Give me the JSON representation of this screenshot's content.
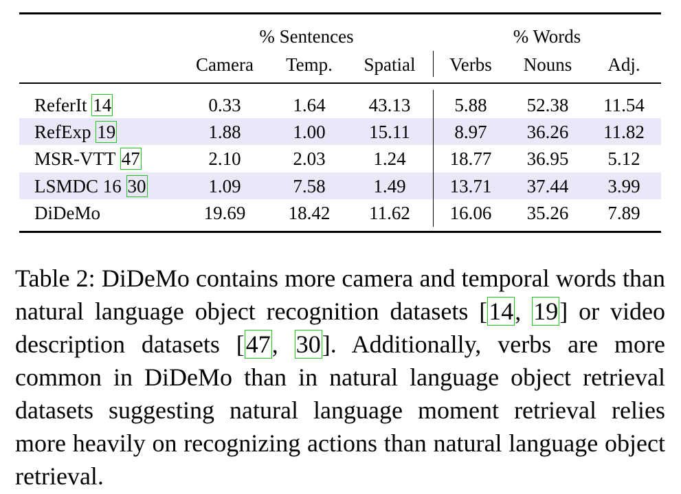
{
  "table": {
    "groups": {
      "sentences": "% Sentences",
      "words": "% Words"
    },
    "columns": [
      "Camera",
      "Temp.",
      "Spatial",
      "Verbs",
      "Nouns",
      "Adj."
    ],
    "rows": [
      {
        "name": "ReferIt",
        "cite": "14",
        "values": [
          "0.33",
          "1.64",
          "43.13",
          "5.88",
          "52.38",
          "11.54"
        ]
      },
      {
        "name": "RefExp",
        "cite": "19",
        "values": [
          "1.88",
          "1.00",
          "15.11",
          "8.97",
          "36.26",
          "11.82"
        ]
      },
      {
        "name": "MSR-VTT",
        "cite": "47",
        "values": [
          "2.10",
          "2.03",
          "1.24",
          "18.77",
          "36.95",
          "5.12"
        ]
      },
      {
        "name": "LSMDC 16",
        "cite": "30",
        "values": [
          "1.09",
          "7.58",
          "1.49",
          "13.71",
          "37.44",
          "3.99"
        ]
      },
      {
        "name": "DiDeMo",
        "cite": "",
        "values": [
          "19.69",
          "18.42",
          "11.62",
          "16.06",
          "35.26",
          "7.89"
        ]
      }
    ]
  },
  "caption": {
    "label": "Table 2:",
    "t1": "DiDeMo contains more camera and temporal words than natural language object recognition datasets [",
    "c1": "14",
    "t2": ", ",
    "c2": "19",
    "t3": "] or video description datasets [",
    "c3": "47",
    "t4": ", ",
    "c4": "30",
    "t5": "]. Additionally, verbs are more common in DiDeMo than in natural language object retrieval datasets suggesting natural language moment retrieval relies more heavily on recognizing actions than natural language object retrieval."
  }
}
